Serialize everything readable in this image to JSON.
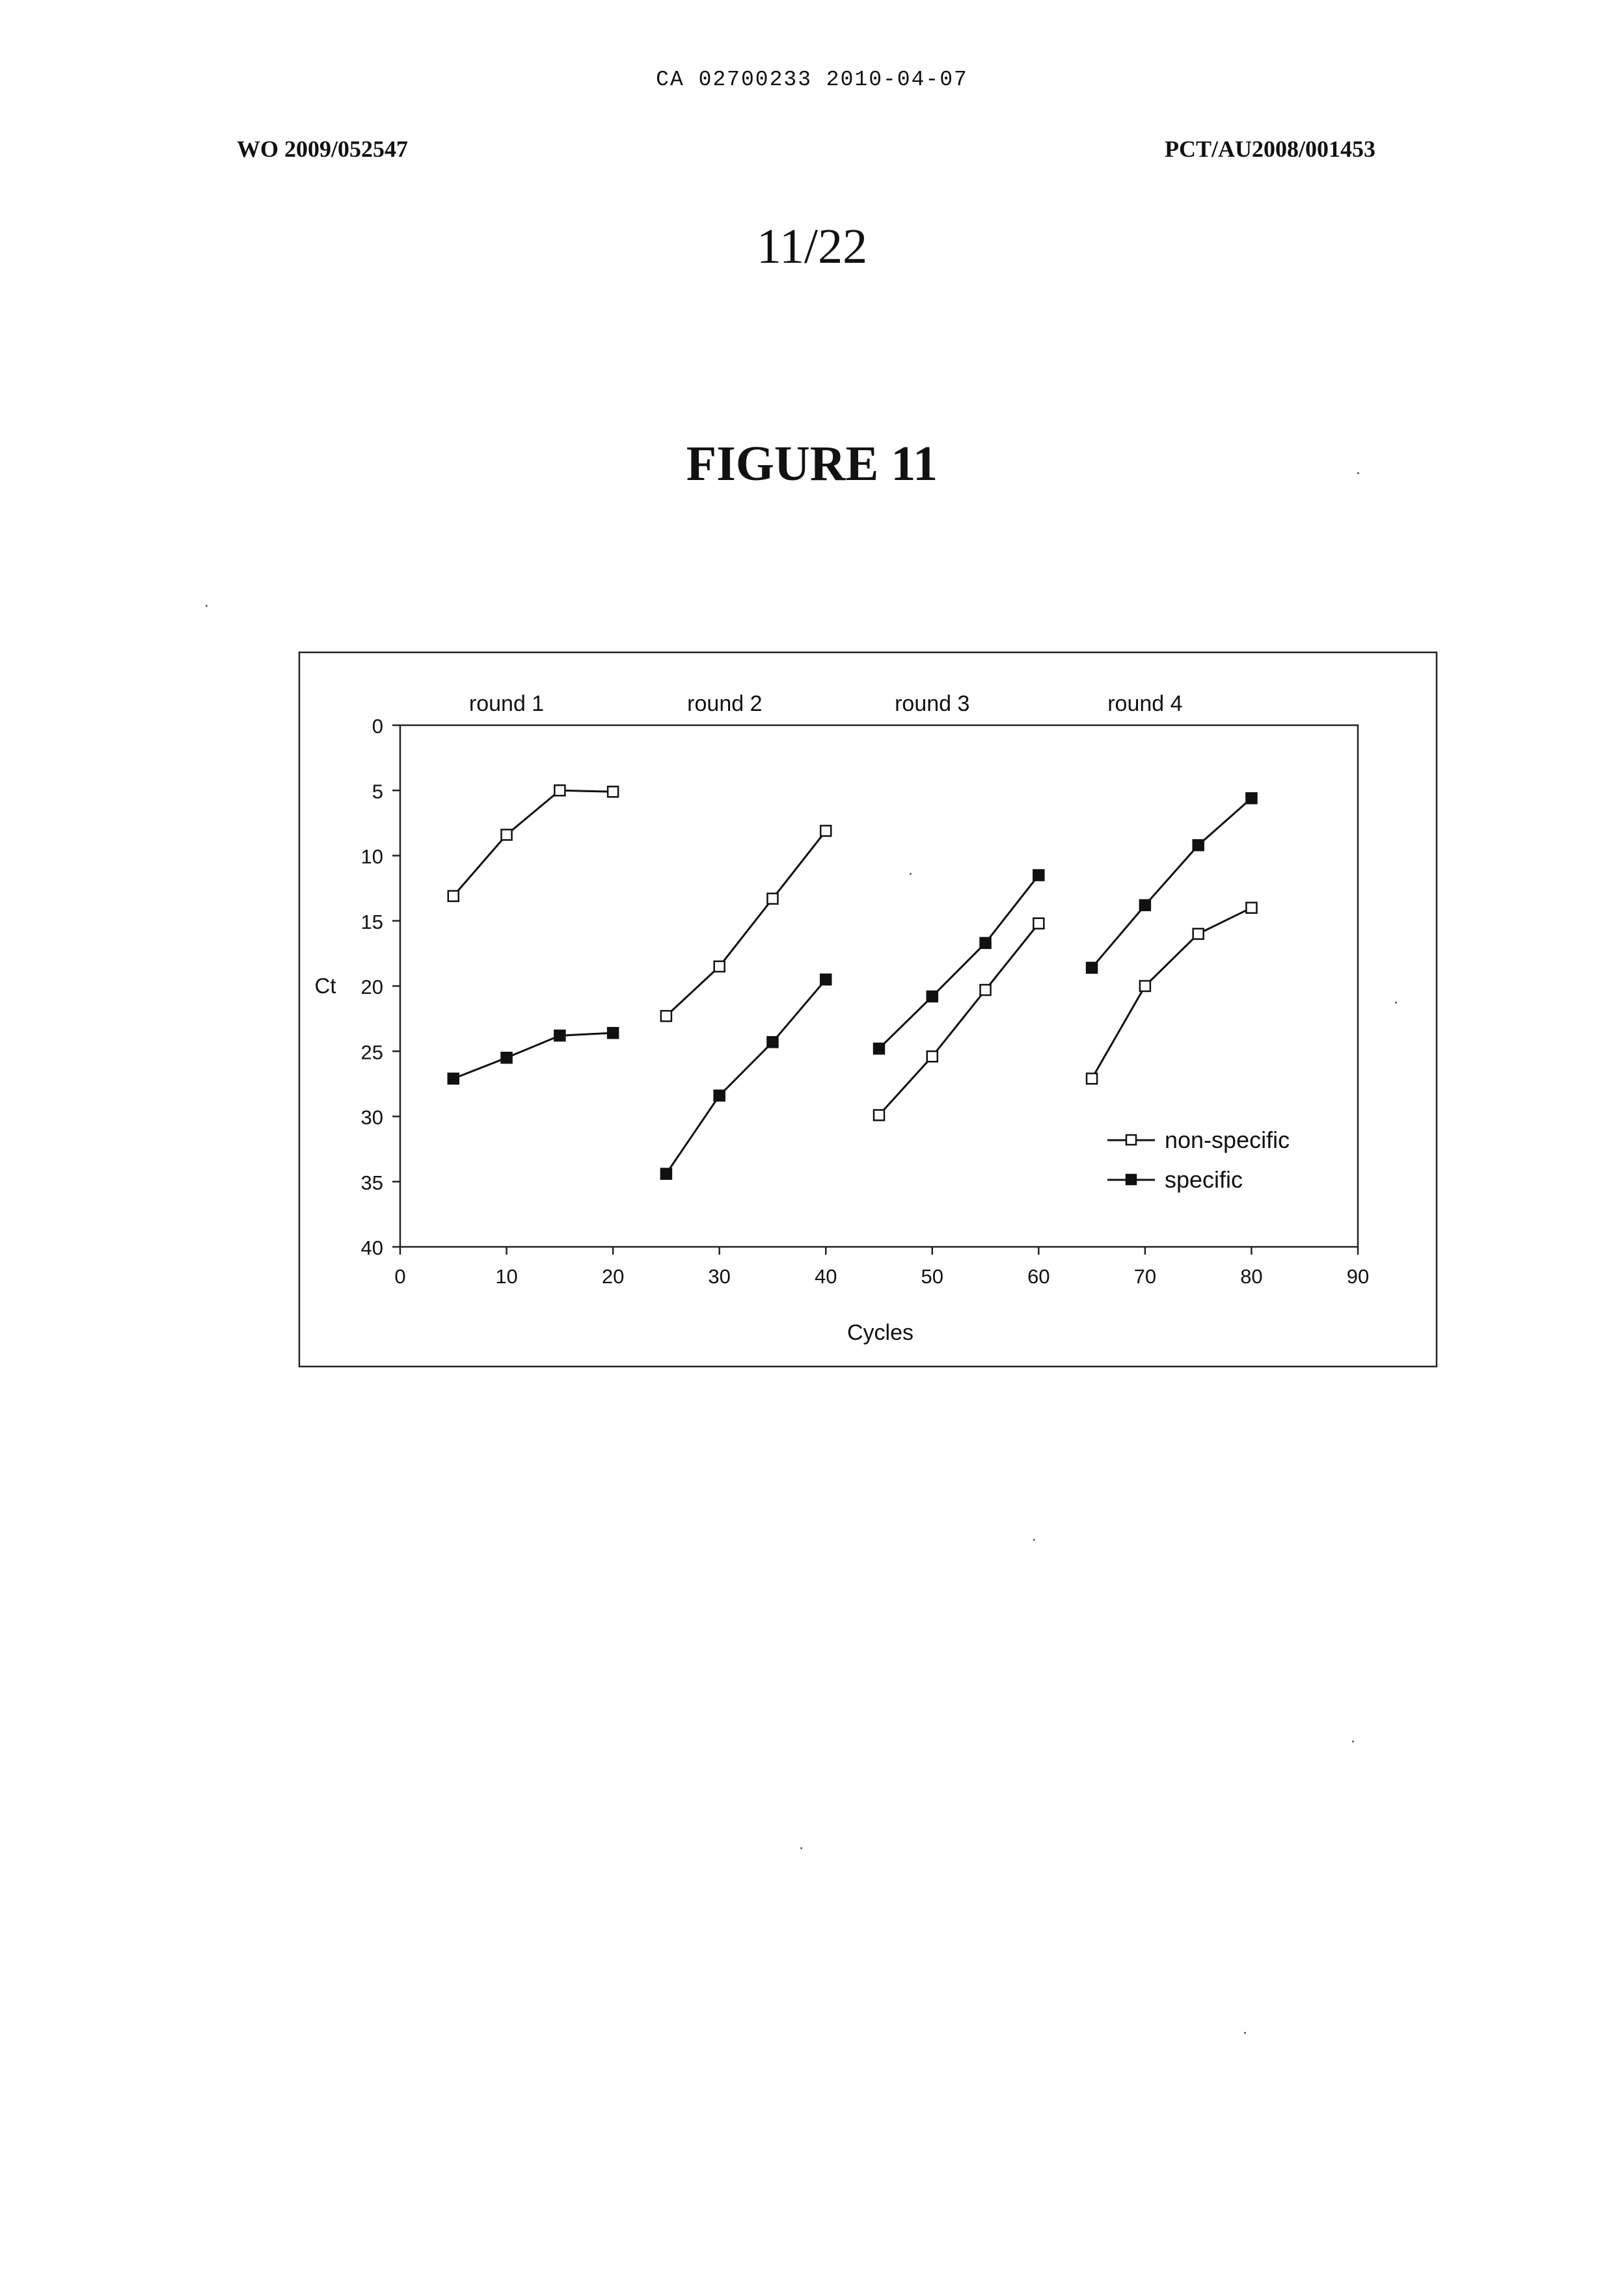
{
  "header": {
    "top_line": "CA 02700233 2010-04-07",
    "left": "WO 2009/052547",
    "right": "PCT/AU2008/001453",
    "page_number": "11/22"
  },
  "figure_title": "FIGURE 11",
  "chart_data": {
    "type": "line",
    "xlabel": "Cycles",
    "ylabel": "Ct",
    "xlim": [
      0,
      90
    ],
    "ylim": [
      0,
      40
    ],
    "y_inverted": true,
    "x_ticks": [
      0,
      10,
      20,
      30,
      40,
      50,
      60,
      70,
      80,
      90
    ],
    "y_ticks": [
      0,
      5,
      10,
      15,
      20,
      25,
      30,
      35,
      40
    ],
    "grid": false,
    "legend_position": "lower-right",
    "round_labels": [
      {
        "label": "round 1",
        "x": 10
      },
      {
        "label": "round 2",
        "x": 30.5
      },
      {
        "label": "round 3",
        "x": 50
      },
      {
        "label": "round 4",
        "x": 70
      }
    ],
    "series": [
      {
        "name": "non-specific",
        "marker": "open-square",
        "segments": [
          [
            [
              5,
              13.1
            ],
            [
              10,
              8.4
            ],
            [
              15,
              5.0
            ],
            [
              20,
              5.1
            ]
          ],
          [
            [
              25,
              22.3
            ],
            [
              30,
              18.5
            ],
            [
              35,
              13.3
            ],
            [
              40,
              8.1
            ]
          ],
          [
            [
              45,
              29.9
            ],
            [
              50,
              25.4
            ],
            [
              55,
              20.3
            ],
            [
              60,
              15.2
            ]
          ],
          [
            [
              65,
              27.1
            ],
            [
              70,
              20.0
            ],
            [
              75,
              16.0
            ],
            [
              80,
              14.0
            ]
          ]
        ]
      },
      {
        "name": "specific",
        "marker": "filled-square",
        "segments": [
          [
            [
              5,
              27.1
            ],
            [
              10,
              25.5
            ],
            [
              15,
              23.8
            ],
            [
              20,
              23.6
            ]
          ],
          [
            [
              25,
              34.4
            ],
            [
              30,
              28.4
            ],
            [
              35,
              24.3
            ],
            [
              40,
              19.5
            ]
          ],
          [
            [
              45,
              24.8
            ],
            [
              50,
              20.8
            ],
            [
              55,
              16.7
            ],
            [
              60,
              11.5
            ]
          ],
          [
            [
              65,
              18.6
            ],
            [
              70,
              13.8
            ],
            [
              75,
              9.2
            ],
            [
              80,
              5.6
            ]
          ]
        ]
      }
    ]
  }
}
